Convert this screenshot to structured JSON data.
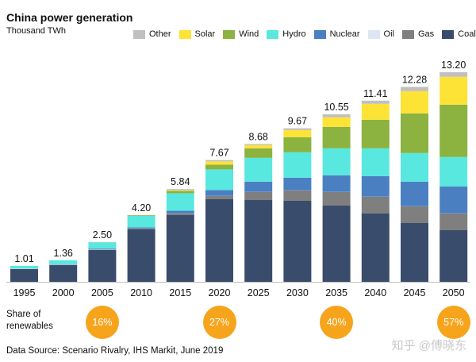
{
  "title": "China power generation",
  "unit_label": "Thousand TWh",
  "legend": [
    {
      "name": "Other",
      "color": "#c0c0c0"
    },
    {
      "name": "Solar",
      "color": "#fde336"
    },
    {
      "name": "Wind",
      "color": "#8cb23f"
    },
    {
      "name": "Hydro",
      "color": "#58e8e0"
    },
    {
      "name": "Nuclear",
      "color": "#4a7fc1"
    },
    {
      "name": "Oil",
      "color": "#dde6f1"
    },
    {
      "name": "Gas",
      "color": "#7f7f7f"
    },
    {
      "name": "Coal",
      "color": "#3a4c6b"
    }
  ],
  "chart_data": {
    "type": "bar",
    "stacked": true,
    "categories": [
      "1995",
      "2000",
      "2005",
      "2010",
      "2015",
      "2020",
      "2025",
      "2030",
      "2035",
      "2040",
      "2045",
      "2050"
    ],
    "totals": [
      "1.01",
      "1.36",
      "2.50",
      "4.20",
      "5.84",
      "7.67",
      "8.68",
      "9.67",
      "10.55",
      "11.41",
      "12.28",
      "13.20"
    ],
    "total_values": [
      1.01,
      1.36,
      2.5,
      4.2,
      5.84,
      7.67,
      8.68,
      9.67,
      10.55,
      11.41,
      12.28,
      13.2
    ],
    "ylim": [
      0,
      13.5
    ],
    "series": [
      {
        "name": "Coal",
        "color": "#3a4c6b",
        "values": [
          0.8,
          1.06,
          2.0,
          3.3,
          4.2,
          5.2,
          5.15,
          5.1,
          4.8,
          4.3,
          3.7,
          3.25
        ]
      },
      {
        "name": "Gas",
        "color": "#7f7f7f",
        "values": [
          0.01,
          0.01,
          0.02,
          0.05,
          0.1,
          0.2,
          0.5,
          0.65,
          0.85,
          1.05,
          1.05,
          1.05
        ]
      },
      {
        "name": "Oil",
        "color": "#dde6f1",
        "values": [
          0.02,
          0.02,
          0.02,
          0.01,
          0.01,
          0.01,
          0.01,
          0.01,
          0.01,
          0.01,
          0.01,
          0.01
        ]
      },
      {
        "name": "Nuclear",
        "color": "#4a7fc1",
        "values": [
          0.01,
          0.02,
          0.05,
          0.07,
          0.17,
          0.37,
          0.65,
          0.8,
          1.05,
          1.3,
          1.55,
          1.7
        ]
      },
      {
        "name": "Hydro",
        "color": "#58e8e0",
        "values": [
          0.17,
          0.25,
          0.4,
          0.72,
          1.1,
          1.3,
          1.5,
          1.6,
          1.7,
          1.75,
          1.8,
          1.85
        ]
      },
      {
        "name": "Wind",
        "color": "#8cb23f",
        "values": [
          0,
          0,
          0,
          0.04,
          0.14,
          0.3,
          0.6,
          0.95,
          1.35,
          1.8,
          2.5,
          3.3
        ]
      },
      {
        "name": "Solar",
        "color": "#fde336",
        "values": [
          0,
          0,
          0,
          0,
          0.04,
          0.2,
          0.2,
          0.45,
          0.6,
          1.0,
          1.4,
          1.75
        ]
      },
      {
        "name": "Other",
        "color": "#c0c0c0",
        "values": [
          0,
          0,
          0.01,
          0.01,
          0.08,
          0.09,
          0.07,
          0.11,
          0.19,
          0.2,
          0.27,
          0.29
        ]
      }
    ]
  },
  "share_of_renewables": {
    "label_line1": "Share of",
    "label_line2": "renewables",
    "items": [
      {
        "year": "2005",
        "value": "16%"
      },
      {
        "year": "2020",
        "value": "27%"
      },
      {
        "year": "2035",
        "value": "40%"
      },
      {
        "year": "2050",
        "value": "57%"
      }
    ]
  },
  "source": "Data Source: Scenario Rivalry, IHS Markit, June 2019",
  "watermark": "知乎 @傅晓东",
  "accent_color": "#f7a41d"
}
